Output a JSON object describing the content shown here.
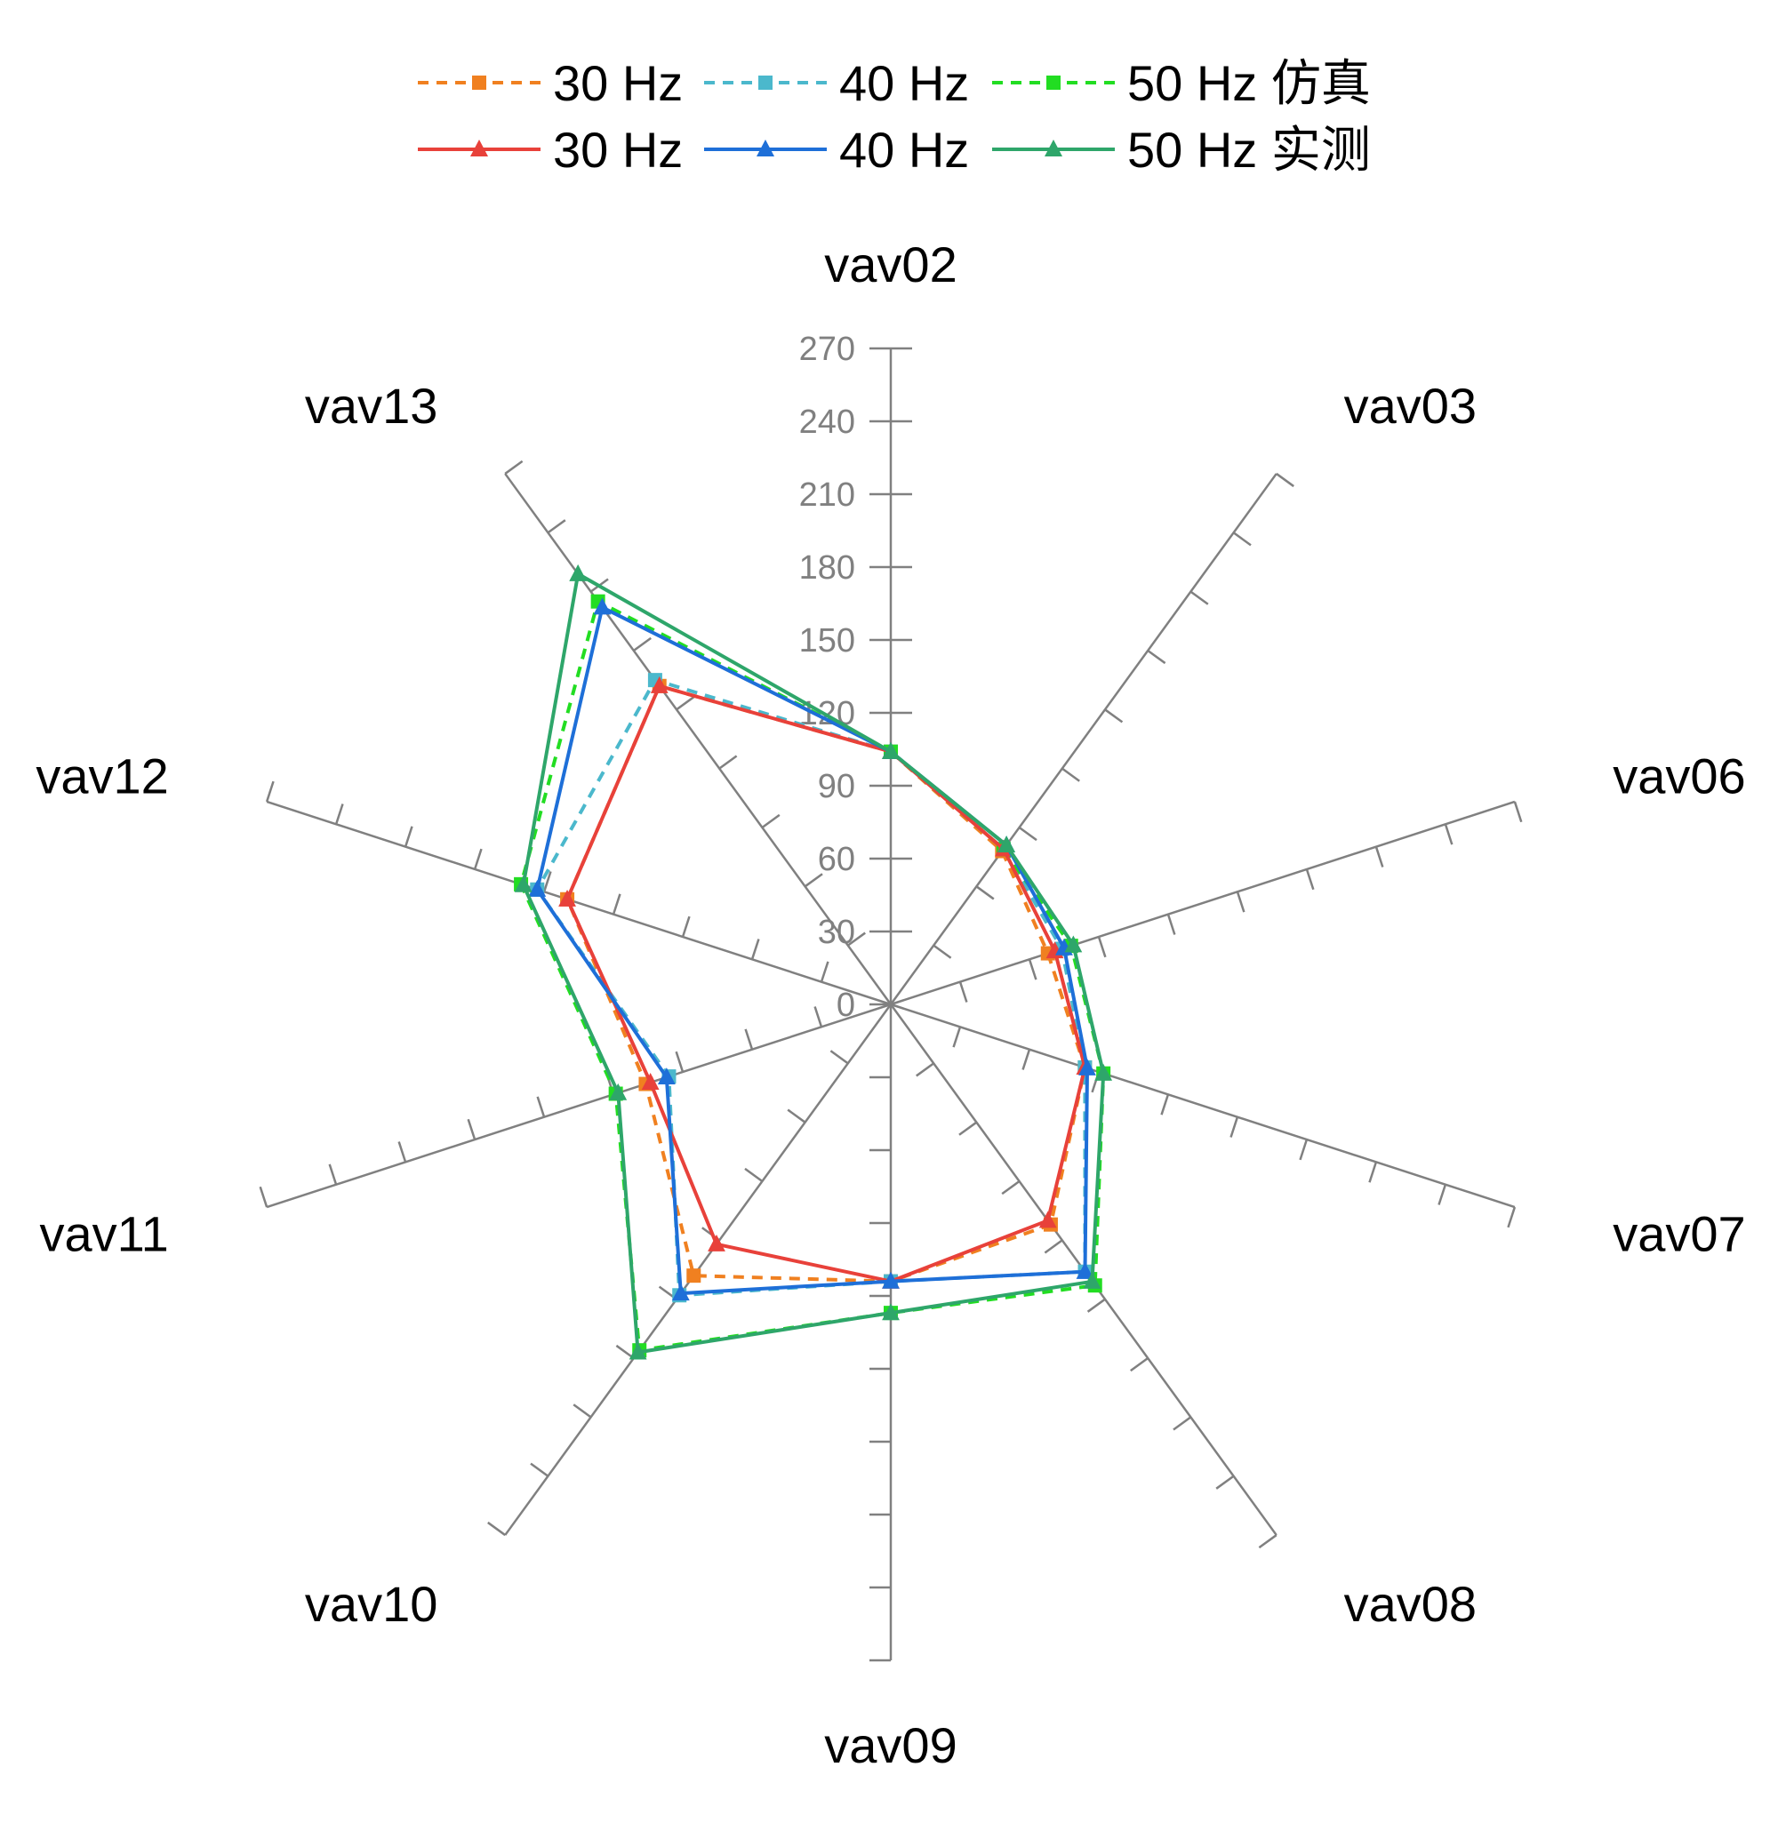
{
  "chart_data": {
    "type": "radar",
    "title": "",
    "categories": [
      "vav02",
      "vav03",
      "vav06",
      "vav07",
      "vav08",
      "vav09",
      "vav10",
      "vav11",
      "vav12",
      "vav13"
    ],
    "rlim": [
      0,
      270
    ],
    "ticks": [
      "0",
      "30",
      "60",
      "90",
      "120",
      "150",
      "180",
      "210",
      "240",
      "270"
    ],
    "legend": {
      "position": "top",
      "groups": [
        {
          "label": "仿真",
          "series_labels": [
            "30 Hz",
            "40 Hz",
            "50 Hz 仿真"
          ]
        },
        {
          "label": "实测",
          "series_labels": [
            "30 Hz",
            "40 Hz",
            "50 Hz 实测"
          ]
        }
      ]
    },
    "series": [
      {
        "name": "30 Hz",
        "group": "仿真",
        "color": "#F08020",
        "dash": true,
        "marker": "square",
        "values": [
          104,
          78,
          68,
          84,
          112,
          114,
          138,
          106,
          140,
          162
        ]
      },
      {
        "name": "40 Hz",
        "group": "仿真",
        "color": "#4BB8CC",
        "dash": true,
        "marker": "square",
        "values": [
          104,
          79,
          74,
          84,
          136,
          114,
          148,
          96,
          153,
          165
        ]
      },
      {
        "name": "50 Hz 仿真",
        "group": "仿真",
        "color": "#22DD22",
        "dash": true,
        "marker": "square",
        "values": [
          104,
          79,
          78,
          92,
          143,
          127,
          176,
          119,
          160,
          205
        ]
      },
      {
        "name": "30 Hz",
        "group": "实测",
        "color": "#E8413A",
        "dash": false,
        "marker": "triangle",
        "values": [
          104,
          79,
          71,
          84,
          110,
          114,
          122,
          104,
          140,
          162
        ]
      },
      {
        "name": "40 Hz",
        "group": "实测",
        "color": "#1E6FD8",
        "dash": false,
        "marker": "triangle",
        "values": [
          104,
          81,
          75,
          85,
          136,
          114,
          147,
          97,
          153,
          202
        ]
      },
      {
        "name": "50 Hz 实测",
        "group": "实测",
        "color": "#2EA66A",
        "dash": false,
        "marker": "triangle",
        "values": [
          104,
          81,
          79,
          92,
          141,
          127,
          177,
          118,
          159,
          219
        ]
      }
    ]
  }
}
